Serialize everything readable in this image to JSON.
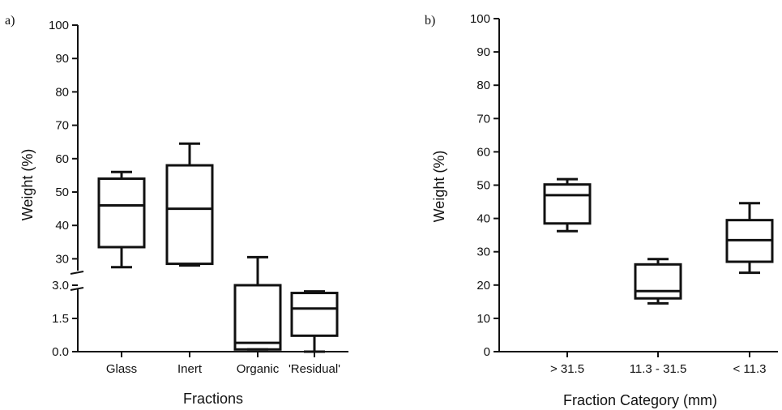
{
  "chart_data": [
    {
      "type": "box",
      "panel_label": "a)",
      "xlabel": "Fractions",
      "ylabel": "Weight (%)",
      "y_axis_break": true,
      "lower_segment": {
        "ylim": [
          0,
          3
        ],
        "ticks": [
          "0.0",
          "1.5",
          "3.0"
        ]
      },
      "upper_segment": {
        "ylim": [
          25,
          100
        ],
        "ticks": [
          "30",
          "40",
          "50",
          "60",
          "70",
          "80",
          "90",
          "100"
        ]
      },
      "categories": [
        "Glass",
        "Inert",
        "Organic",
        "'Residual'"
      ],
      "boxes": [
        {
          "category": "Glass",
          "min": 27.5,
          "q1": 33.5,
          "median": 46,
          "q3": 54,
          "max": 56
        },
        {
          "category": "Inert",
          "min": 28,
          "q1": 28.5,
          "median": 45,
          "q3": 58,
          "max": 64.5
        },
        {
          "category": "Organic",
          "min": 0.1,
          "q1": 0.1,
          "median": 0.4,
          "q3": 3.0,
          "max": 30.5
        },
        {
          "category": "'Residual'",
          "min": 0.0,
          "q1": 0.72,
          "median": 1.95,
          "q3": 2.65,
          "max": 2.72
        }
      ]
    },
    {
      "type": "box",
      "panel_label": "b)",
      "xlabel": "Fraction Category (mm)",
      "ylabel": "Weight (%)",
      "ylim": [
        0,
        100
      ],
      "ticks": [
        "0",
        "10",
        "20",
        "30",
        "40",
        "50",
        "60",
        "70",
        "80",
        "90",
        "100"
      ],
      "categories": [
        "> 31.5",
        "11.3 - 31.5",
        "< 11.3"
      ],
      "boxes": [
        {
          "category": "> 31.5",
          "min": 36.2,
          "q1": 38.5,
          "median": 47,
          "q3": 50.2,
          "max": 51.8
        },
        {
          "category": "11.3 - 31.5",
          "min": 14.5,
          "q1": 16,
          "median": 18.2,
          "q3": 26.2,
          "max": 27.8
        },
        {
          "category": "< 11.3",
          "min": 23.7,
          "q1": 27,
          "median": 33.5,
          "q3": 39.5,
          "max": 44.6
        }
      ]
    }
  ]
}
